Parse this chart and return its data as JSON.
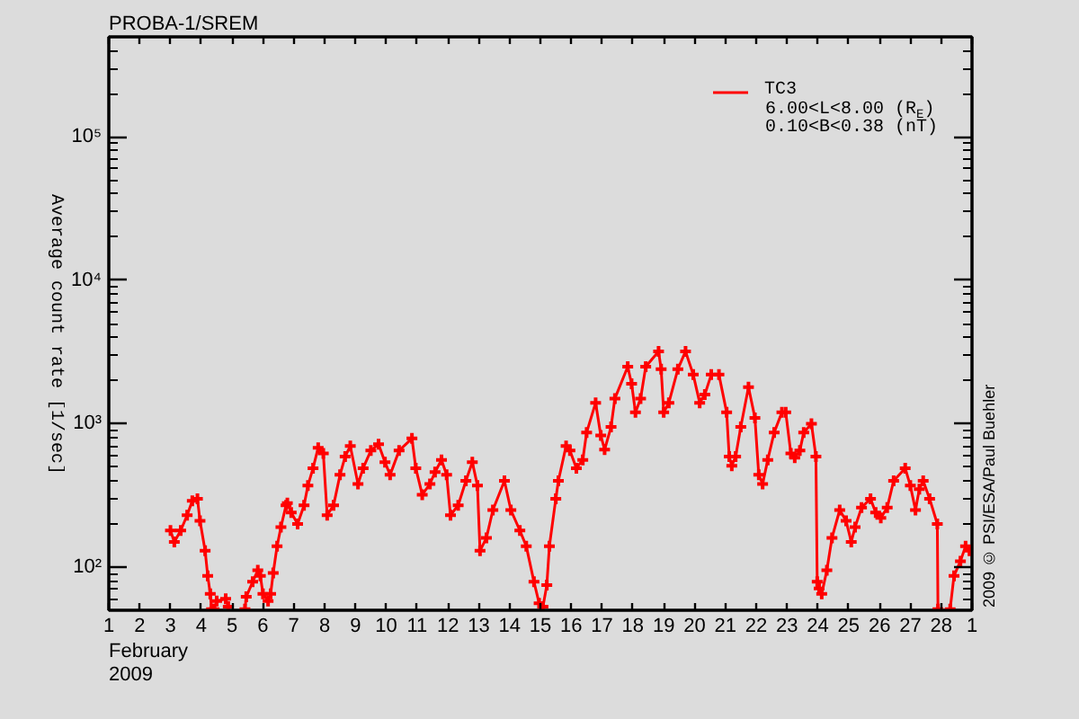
{
  "chart_data": {
    "type": "line",
    "title": "PROBA-1/SREM",
    "xlabel": "February\n2009",
    "ylabel": "Average count rate [1/sec]",
    "x": [
      "2009-02-03T00:00",
      "2009-02-03T03:00",
      "2009-02-03T08:00",
      "2009-02-03T13:00",
      "2009-02-03T17:00",
      "2009-02-03T21:00",
      "2009-02-03T23:00",
      "2009-02-04T03:00",
      "2009-02-04T05:00",
      "2009-02-04T07:00",
      "2009-02-04T08:00",
      "2009-02-04T09:00",
      "2009-02-04T10:00",
      "2009-02-04T12:00",
      "2009-02-04T19:00",
      "2009-02-04T21:00",
      "2009-02-05T00:00",
      "2009-02-05T10:00",
      "2009-02-05T11:00",
      "2009-02-05T16:00",
      "2009-02-05T20:00",
      "2009-02-05T22:00",
      "2009-02-06T00:00",
      "2009-02-06T04:00",
      "2009-02-06T06:00",
      "2009-02-06T08:00",
      "2009-02-06T11:00",
      "2009-02-06T14:00",
      "2009-02-06T18:00",
      "2009-02-06T19:00",
      "2009-02-06T22:00",
      "2009-02-07T03:00",
      "2009-02-07T08:00",
      "2009-02-07T11:00",
      "2009-02-07T15:00",
      "2009-02-07T19:00",
      "2009-02-07T23:00",
      "2009-02-08T02:00",
      "2009-02-08T07:00",
      "2009-02-08T12:00",
      "2009-02-08T16:00",
      "2009-02-08T20:00",
      "2009-02-09T02:00",
      "2009-02-09T06:00",
      "2009-02-09T12:00",
      "2009-02-09T18:00",
      "2009-02-09T23:00",
      "2009-02-10T03:00",
      "2009-02-10T10:00",
      "2009-02-10T20:00",
      "2009-02-10T23:00",
      "2009-02-11T04:00",
      "2009-02-11T10:00",
      "2009-02-11T14:00",
      "2009-02-11T19:00",
      "2009-02-11T23:00",
      "2009-02-12T02:00",
      "2009-02-12T08:00",
      "2009-02-12T14:00",
      "2009-02-12T19:00",
      "2009-02-12T23:00",
      "2009-02-13T01:00",
      "2009-02-13T06:00",
      "2009-02-13T11:00",
      "2009-02-13T20:00",
      "2009-02-14T01:00",
      "2009-02-14T08:00",
      "2009-02-14T13:00",
      "2009-02-14T19:00",
      "2009-02-14T23:00",
      "2009-02-15T02:00",
      "2009-02-15T05:00",
      "2009-02-15T07:00",
      "2009-02-15T12:00",
      "2009-02-15T14:00",
      "2009-02-15T20:00",
      "2009-02-15T23:00",
      "2009-02-16T04:00",
      "2009-02-16T09:00",
      "2009-02-16T12:00",
      "2009-02-16T19:00",
      "2009-02-16T23:00",
      "2009-02-17T02:00",
      "2009-02-17T07:00",
      "2009-02-17T10:00",
      "2009-02-17T20:00",
      "2009-02-17T23:00",
      "2009-02-18T02:00",
      "2009-02-18T06:00",
      "2009-02-18T10:00",
      "2009-02-18T20:00",
      "2009-02-18T22:00",
      "2009-02-19T00:00",
      "2009-02-19T04:00",
      "2009-02-19T11:00",
      "2009-02-19T17:00",
      "2009-02-19T23:00",
      "2009-02-20T04:00",
      "2009-02-20T08:00",
      "2009-02-20T13:00",
      "2009-02-20T19:00",
      "2009-02-21T01:00",
      "2009-02-21T03:00",
      "2009-02-21T05:00",
      "2009-02-21T08:00",
      "2009-02-21T12:00",
      "2009-02-21T18:00",
      "2009-02-21T23:00",
      "2009-02-22T02:00",
      "2009-02-22T05:00",
      "2009-02-22T09:00",
      "2009-02-22T14:00",
      "2009-02-22T20:00",
      "2009-02-22T23:00",
      "2009-02-23T03:00",
      "2009-02-23T06:00",
      "2009-02-23T10:00",
      "2009-02-23T13:00",
      "2009-02-23T19:00",
      "2009-02-23T22:30",
      "2009-02-23T23:30",
      "2009-02-24T01:00",
      "2009-02-24T03:00",
      "2009-02-24T07:00",
      "2009-02-24T11:00",
      "2009-02-24T17:00",
      "2009-02-24T22:00",
      "2009-02-25T02:00",
      "2009-02-25T05:00",
      "2009-02-25T10:00",
      "2009-02-25T17:00",
      "2009-02-25T21:00",
      "2009-02-26T01:00",
      "2009-02-26T06:00",
      "2009-02-26T11:00",
      "2009-02-26T20:00",
      "2009-02-27T00:00",
      "2009-02-27T04:00",
      "2009-02-27T07:00",
      "2009-02-27T10:00",
      "2009-02-27T15:00",
      "2009-02-27T21:00",
      "2009-02-27T21:30",
      "2009-02-28T00:00",
      "2009-02-28T07:00",
      "2009-02-28T10:00",
      "2009-02-28T15:00",
      "2009-02-28T19:00",
      "2009-02-28T22:00"
    ],
    "series": [
      {
        "name": "TC3",
        "color": "#ff0000",
        "values": [
          180,
          150,
          180,
          230,
          290,
          300,
          210,
          130,
          87,
          65,
          51,
          null,
          51,
          58,
          60,
          53,
          null,
          51,
          62,
          79,
          95,
          87,
          65,
          58,
          65,
          91,
          140,
          190,
          270,
          280,
          240,
          200,
          270,
          370,
          490,
          680,
          620,
          230,
          270,
          440,
          590,
          700,
          380,
          490,
          650,
          720,
          540,
          440,
          650,
          790,
          490,
          320,
          380,
          460,
          560,
          440,
          230,
          270,
          400,
          540,
          370,
          130,
          160,
          250,
          400,
          250,
          180,
          140,
          79,
          56,
          53,
          75,
          140,
          300,
          400,
          700,
          650,
          490,
          560,
          870,
          1400,
          830,
          660,
          950,
          1500,
          2500,
          1900,
          1200,
          1500,
          2500,
          3200,
          2400,
          1200,
          1400,
          2400,
          3200,
          2200,
          1400,
          1600,
          2200,
          2200,
          1200,
          590,
          510,
          590,
          950,
          1800,
          1100,
          440,
          380,
          560,
          870,
          1200,
          1200,
          620,
          580,
          650,
          870,
          1000,
          590,
          79,
          71,
          65,
          95,
          160,
          250,
          210,
          150,
          190,
          260,
          300,
          240,
          220,
          260,
          400,
          490,
          370,
          250,
          350,
          400,
          300,
          200,
          51,
          null,
          51,
          87,
          110,
          140,
          130
        ]
      }
    ],
    "xlim": [
      "2009-02-01",
      "2009-03-01"
    ],
    "xticks": [
      {
        "value": "2009-02-01",
        "label": "1"
      },
      {
        "value": "2009-02-02",
        "label": "2"
      },
      {
        "value": "2009-02-03",
        "label": "3"
      },
      {
        "value": "2009-02-04",
        "label": "4"
      },
      {
        "value": "2009-02-05",
        "label": "5"
      },
      {
        "value": "2009-02-06",
        "label": "6"
      },
      {
        "value": "2009-02-07",
        "label": "7"
      },
      {
        "value": "2009-02-08",
        "label": "8"
      },
      {
        "value": "2009-02-09",
        "label": "9"
      },
      {
        "value": "2009-02-10",
        "label": "10"
      },
      {
        "value": "2009-02-11",
        "label": "11"
      },
      {
        "value": "2009-02-12",
        "label": "12"
      },
      {
        "value": "2009-02-13",
        "label": "13"
      },
      {
        "value": "2009-02-14",
        "label": "14"
      },
      {
        "value": "2009-02-15",
        "label": "15"
      },
      {
        "value": "2009-02-16",
        "label": "16"
      },
      {
        "value": "2009-02-17",
        "label": "17"
      },
      {
        "value": "2009-02-18",
        "label": "18"
      },
      {
        "value": "2009-02-19",
        "label": "19"
      },
      {
        "value": "2009-02-20",
        "label": "20"
      },
      {
        "value": "2009-02-21",
        "label": "21"
      },
      {
        "value": "2009-02-22",
        "label": "22"
      },
      {
        "value": "2009-02-23",
        "label": "23"
      },
      {
        "value": "2009-02-24",
        "label": "24"
      },
      {
        "value": "2009-02-25",
        "label": "25"
      },
      {
        "value": "2009-02-26",
        "label": "26"
      },
      {
        "value": "2009-02-27",
        "label": "27"
      },
      {
        "value": "2009-02-28",
        "label": "28"
      },
      {
        "value": "2009-03-01",
        "label": "1"
      }
    ],
    "ylim": [
      50,
      500000
    ],
    "yticks": [
      {
        "value": 100,
        "label": "10²"
      },
      {
        "value": 1000,
        "label": "10³"
      },
      {
        "value": 10000,
        "label": "10⁴"
      },
      {
        "value": 100000,
        "label": "10⁵"
      }
    ],
    "log": true,
    "marker": "cross",
    "line_style": "solid",
    "legend": "top right",
    "annotations": [
      "6.00<L<8.00 (R$_{E}$)",
      "0.10<B<0.38 (nT)",
      "2009 © PSI/ESA/Paul Buehler"
    ]
  }
}
